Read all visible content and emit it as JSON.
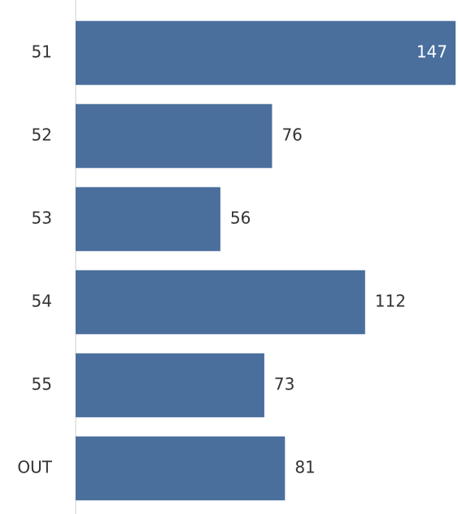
{
  "chart_data": {
    "type": "bar",
    "orientation": "horizontal",
    "categories": [
      "51",
      "52",
      "53",
      "54",
      "55",
      "OUT"
    ],
    "values": [
      147,
      76,
      56,
      112,
      73,
      81
    ],
    "color": "#4a6f9d",
    "xlim": [
      0,
      147
    ]
  }
}
